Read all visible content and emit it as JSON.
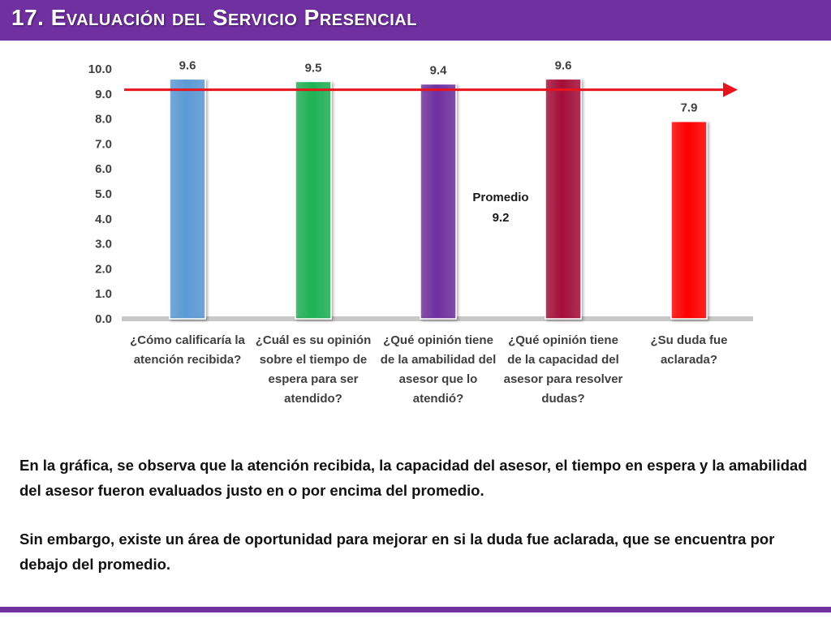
{
  "slide": {
    "title": "17. Evaluación del Servicio Presencial",
    "paragraphs": [
      "En la gráfica, se observa que la atención recibida, la capacidad del asesor, el tiempo en espera y la amabilidad del asesor fueron evaluados justo en o por encima del promedio.",
      "Sin embargo, existe un área de oportunidad para mejorar en si la duda fue aclarada, que se encuentra por debajo del promedio."
    ]
  },
  "colors": {
    "title_bar": "#7030a0",
    "average_line": "#e8141c",
    "bars": [
      "#5b9bd5",
      "#1fb255",
      "#7030a0",
      "#a50b3a",
      "#ff0000"
    ]
  },
  "chart_data": {
    "type": "bar",
    "categories": [
      "¿Cómo calificaría la atención recibida?",
      "¿Cuál es su opinión sobre el tiempo de espera para ser atendido?",
      "¿Qué opinión tiene de la amabilidad del asesor que lo atendió?",
      "¿Qué opinión tiene de la capacidad del asesor para resolver dudas?",
      "¿Su duda fue aclarada?"
    ],
    "values": [
      9.6,
      9.5,
      9.4,
      9.6,
      7.9
    ],
    "data_labels": [
      "9.6",
      "9.5",
      "9.4",
      "9.6",
      "7.9"
    ],
    "ylim": [
      0,
      10
    ],
    "y_ticks": [
      "0.0",
      "1.0",
      "2.0",
      "3.0",
      "4.0",
      "5.0",
      "6.0",
      "7.0",
      "8.0",
      "9.0",
      "10.0"
    ],
    "average": {
      "label": "Promedio",
      "value": 9.2,
      "value_label": "9.2"
    },
    "grid": false,
    "legend": "none"
  }
}
